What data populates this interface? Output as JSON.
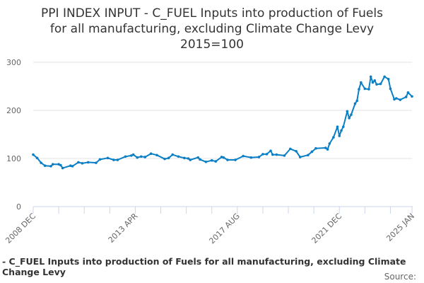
{
  "chart_data": {
    "type": "line",
    "title": [
      "PPI INDEX INPUT - C_FUEL Inputs into production of Fuels",
      "for all manufacturing, excluding Climate Change Levy",
      "2015=100"
    ],
    "xlabel": "",
    "ylabel": "",
    "ylim": [
      0,
      300
    ],
    "yticks": [
      "0",
      "100",
      "200",
      "300"
    ],
    "xticks": [
      {
        "date": "2008-12",
        "label": "2008 DEC"
      },
      {
        "date": "2013-04",
        "label": "2013 APR"
      },
      {
        "date": "2017-08",
        "label": "2017 AUG"
      },
      {
        "date": "2021-12",
        "label": "2021 DEC"
      },
      {
        "date": "2025-01",
        "label": "2025 JAN"
      }
    ],
    "xlim": [
      "2008-12",
      "2025-01"
    ],
    "grid": true,
    "color": "#0a7fc5",
    "legend_text": "- C_FUEL Inputs into production of Fuels for all manufacturing, excluding Climate Change Levy",
    "source_label": "Source:",
    "series": [
      {
        "points": [
          [
            "2008-12",
            108
          ],
          [
            "2009-02",
            101
          ],
          [
            "2009-04",
            91
          ],
          [
            "2009-06",
            85
          ],
          [
            "2009-09",
            84
          ],
          [
            "2009-10",
            88
          ],
          [
            "2010-01",
            88
          ],
          [
            "2010-02",
            86
          ],
          [
            "2010-03",
            80
          ],
          [
            "2010-07",
            85
          ],
          [
            "2010-08",
            84
          ],
          [
            "2010-11",
            92
          ],
          [
            "2011-01",
            90
          ],
          [
            "2011-04",
            92
          ],
          [
            "2011-08",
            91
          ],
          [
            "2011-10",
            98
          ],
          [
            "2012-02",
            101
          ],
          [
            "2012-05",
            97
          ],
          [
            "2012-07",
            97
          ],
          [
            "2012-11",
            104
          ],
          [
            "2013-02",
            106
          ],
          [
            "2013-03",
            108
          ],
          [
            "2013-05",
            102
          ],
          [
            "2013-07",
            104
          ],
          [
            "2013-09",
            103
          ],
          [
            "2013-12",
            110
          ],
          [
            "2014-03",
            107
          ],
          [
            "2014-07",
            99
          ],
          [
            "2014-09",
            101
          ],
          [
            "2014-11",
            108
          ],
          [
            "2015-02",
            104
          ],
          [
            "2015-05",
            101
          ],
          [
            "2015-07",
            100
          ],
          [
            "2015-08",
            97
          ],
          [
            "2015-12",
            102
          ],
          [
            "2016-01",
            98
          ],
          [
            "2016-04",
            93
          ],
          [
            "2016-07",
            96
          ],
          [
            "2016-09",
            94
          ],
          [
            "2016-12",
            103
          ],
          [
            "2017-01",
            102
          ],
          [
            "2017-03",
            97
          ],
          [
            "2017-07",
            97
          ],
          [
            "2017-11",
            105
          ],
          [
            "2018-03",
            102
          ],
          [
            "2018-07",
            103
          ],
          [
            "2018-09",
            109
          ],
          [
            "2018-11",
            109
          ],
          [
            "2019-01",
            116
          ],
          [
            "2019-02",
            108
          ],
          [
            "2019-04",
            108
          ],
          [
            "2019-08",
            106
          ],
          [
            "2019-11",
            120
          ],
          [
            "2020-02",
            115
          ],
          [
            "2020-04",
            103
          ],
          [
            "2020-08",
            107
          ],
          [
            "2020-10",
            114
          ],
          [
            "2020-12",
            121
          ],
          [
            "2021-05",
            122
          ],
          [
            "2021-06",
            119
          ],
          [
            "2021-07",
            131
          ],
          [
            "2021-09",
            144
          ],
          [
            "2021-11",
            166
          ],
          [
            "2021-12",
            147
          ],
          [
            "2022-01",
            158
          ],
          [
            "2022-02",
            166
          ],
          [
            "2022-04",
            198
          ],
          [
            "2022-05",
            184
          ],
          [
            "2022-06",
            191
          ],
          [
            "2022-08",
            214
          ],
          [
            "2022-09",
            220
          ],
          [
            "2022-10",
            244
          ],
          [
            "2022-11",
            258
          ],
          [
            "2023-01",
            245
          ],
          [
            "2023-03",
            244
          ],
          [
            "2023-04",
            270
          ],
          [
            "2023-05",
            258
          ],
          [
            "2023-06",
            262
          ],
          [
            "2023-07",
            254
          ],
          [
            "2023-09",
            255
          ],
          [
            "2023-11",
            270
          ],
          [
            "2024-01",
            265
          ],
          [
            "2024-02",
            245
          ],
          [
            "2024-04",
            223
          ],
          [
            "2024-05",
            225
          ],
          [
            "2024-07",
            222
          ],
          [
            "2024-10",
            228
          ],
          [
            "2024-11",
            237
          ],
          [
            "2025-01",
            229
          ]
        ]
      }
    ]
  }
}
